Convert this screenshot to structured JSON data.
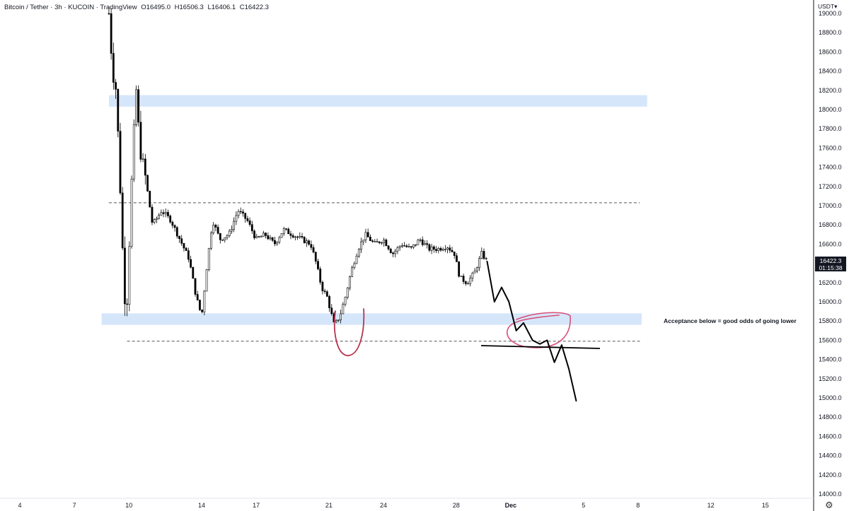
{
  "header": {
    "symbol": "Bitcoin / Tether · 3h · KUCOIN · TradingView",
    "open": "O16495.0",
    "high": "H16506.3",
    "low": "L16406.1",
    "close": "C16422.3"
  },
  "currency_label": "USDT",
  "last_price": "16422.3",
  "countdown": "01:15:38",
  "annotation_text": "Acceptance below = good odds of going lower",
  "colors": {
    "zone": "#d6e6fa",
    "dashed": "#555555",
    "candle": "#000000",
    "drawing_red": "#b8344f",
    "drawing_pink": "#d9507a",
    "projection": "#000000"
  },
  "chart_data": {
    "type": "candlestick",
    "symbol": "BTC/USDT",
    "interval": "3h",
    "y_ticks": [
      19000,
      18800,
      18600,
      18400,
      18200,
      18000,
      17800,
      17600,
      17400,
      17200,
      17000,
      16800,
      16600,
      16400,
      16200,
      16000,
      15800,
      15600,
      15400,
      15200,
      15000,
      14800,
      14600,
      14400,
      14200,
      14000
    ],
    "y_tick_labels": [
      "19000.0",
      "18800.0",
      "18600.0",
      "18400.0",
      "18200.0",
      "18000.0",
      "17800.0",
      "17600.0",
      "17400.0",
      "17200.0",
      "17000.0",
      "16800.0",
      "16600.0",
      "16400.0",
      "16200.0",
      "16000.0",
      "15800.0",
      "15600.0",
      "15400.0",
      "15200.0",
      "15000.0",
      "14800.0",
      "14600.0",
      "14400.0",
      "14200.0",
      "14000.0"
    ],
    "ylim": [
      13970,
      19100
    ],
    "x_ticks": [
      "4",
      "7",
      "10",
      "14",
      "17",
      "21",
      "24",
      "28",
      "Dec",
      "5",
      "8",
      "12",
      "15"
    ],
    "x_tick_days": [
      4,
      7,
      10,
      14,
      17,
      21,
      24,
      28,
      31,
      35,
      38,
      42,
      45
    ],
    "xlim_days": [
      3.0,
      48.0
    ],
    "zones": [
      {
        "low": 18030,
        "high": 18150,
        "from_day": 8.9,
        "to_day": 38.5
      },
      {
        "low": 15760,
        "high": 15880,
        "from_day": 8.5,
        "to_day": 38.2
      }
    ],
    "levels": [
      {
        "price": 17030,
        "from_day": 8.9,
        "to_day": 38.1
      },
      {
        "price": 15590,
        "from_day": 9.9,
        "to_day": 38.1
      }
    ],
    "price_path": [
      [
        8.9,
        19000
      ],
      [
        9.1,
        18400
      ],
      [
        9.3,
        18200
      ],
      [
        9.5,
        17300
      ],
      [
        9.7,
        16300
      ],
      [
        9.85,
        15800
      ],
      [
        10.0,
        16500
      ],
      [
        10.2,
        17500
      ],
      [
        10.4,
        18200
      ],
      [
        10.6,
        17600
      ],
      [
        10.9,
        17300
      ],
      [
        11.3,
        16800
      ],
      [
        11.8,
        16950
      ],
      [
        12.3,
        16850
      ],
      [
        12.8,
        16650
      ],
      [
        13.3,
        16450
      ],
      [
        13.7,
        16050
      ],
      [
        14.0,
        15850
      ],
      [
        14.3,
        16400
      ],
      [
        14.6,
        16850
      ],
      [
        15.0,
        16650
      ],
      [
        15.5,
        16700
      ],
      [
        16.0,
        16950
      ],
      [
        16.5,
        16850
      ],
      [
        17.0,
        16650
      ],
      [
        17.5,
        16700
      ],
      [
        18.0,
        16600
      ],
      [
        18.5,
        16750
      ],
      [
        19.0,
        16700
      ],
      [
        19.5,
        16650
      ],
      [
        20.0,
        16600
      ],
      [
        20.3,
        16400
      ],
      [
        20.6,
        16150
      ],
      [
        20.9,
        16050
      ],
      [
        21.3,
        15750
      ],
      [
        21.6,
        15850
      ],
      [
        21.9,
        16050
      ],
      [
        22.2,
        16300
      ],
      [
        22.6,
        16550
      ],
      [
        23.0,
        16700
      ],
      [
        23.5,
        16600
      ],
      [
        24.0,
        16650
      ],
      [
        24.5,
        16500
      ],
      [
        25.0,
        16600
      ],
      [
        25.5,
        16550
      ],
      [
        26.0,
        16650
      ],
      [
        26.5,
        16550
      ],
      [
        27.0,
        16550
      ],
      [
        27.5,
        16580
      ],
      [
        27.9,
        16500
      ],
      [
        28.2,
        16250
      ],
      [
        28.6,
        16200
      ],
      [
        29.0,
        16300
      ],
      [
        29.4,
        16500
      ],
      [
        29.7,
        16422
      ]
    ],
    "projection_path": [
      [
        29.7,
        16420
      ],
      [
        30.1,
        16000
      ],
      [
        30.5,
        16150
      ],
      [
        30.9,
        16000
      ],
      [
        31.3,
        15700
      ],
      [
        31.7,
        15780
      ],
      [
        32.2,
        15600
      ],
      [
        32.6,
        15560
      ],
      [
        33.0,
        15600
      ],
      [
        33.4,
        15370
      ],
      [
        33.8,
        15550
      ],
      [
        34.2,
        15300
      ],
      [
        34.6,
        14970
      ]
    ],
    "annotation": "Acceptance below = good odds of going lower"
  }
}
